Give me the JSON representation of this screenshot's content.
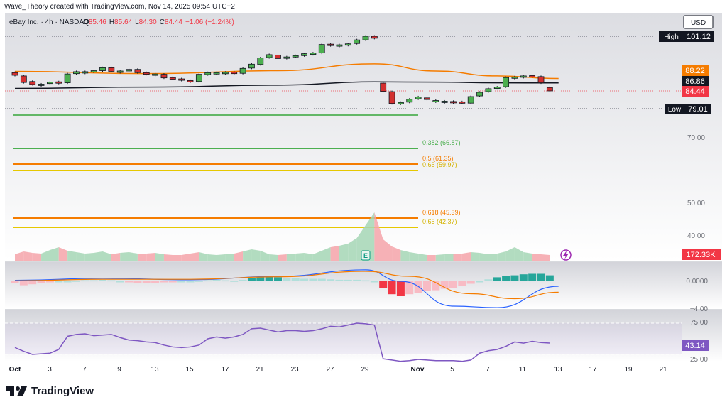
{
  "header": {
    "credit": "Wave_Theory created with TradingView.com, Nov 14, 2025 09:54 UTC+2"
  },
  "legend": {
    "symbol": "eBay Inc. · 4h · NASDAQ",
    "o_label": "O",
    "o_value": "85.46",
    "h_label": "H",
    "h_value": "85.64",
    "l_label": "L",
    "l_value": "84.30",
    "c_label": "C",
    "c_value": "84.44",
    "change": "−1.06 (−1.24%)"
  },
  "currency_button": "USD",
  "price_axis": {
    "high_label": "High",
    "high_value": "101.12",
    "low_label": "Low",
    "low_value": "79.01",
    "ema_orange_badge": "88.22",
    "ema_black_badge": "86.86",
    "last_price_badge": "84.44",
    "ticks": [
      "70.00",
      "50.00",
      "40.00"
    ],
    "volume_badge": "172.33K",
    "macd_ticks": [
      "0.0000",
      "−4.00"
    ],
    "rsi_ticks": [
      "75.00",
      "25.00"
    ],
    "rsi_badge": "43.14"
  },
  "fib_levels": [
    {
      "label": "0.382 (66.87)",
      "color": "#4caf50"
    },
    {
      "label": "0.5 (61.35)",
      "color": "#f57c00"
    },
    {
      "label": "0.65 (59.97)",
      "color": "#e6c800"
    },
    {
      "label": "0.618 (45.39)",
      "color": "#f57c00"
    },
    {
      "label": "0.65 (42.37)",
      "color": "#e6c800"
    }
  ],
  "time_axis": [
    "Oct",
    "3",
    "7",
    "9",
    "13",
    "15",
    "17",
    "21",
    "23",
    "27",
    "29",
    "Nov",
    "5",
    "7",
    "11",
    "13",
    "17",
    "19",
    "21"
  ],
  "earnings_marker": "E",
  "brand": "TradingView",
  "chart_data": {
    "type": "candlestick",
    "symbol": "eBay Inc.",
    "interval": "4h",
    "exchange": "NASDAQ",
    "currency": "USD",
    "last_ohlc": {
      "open": 85.46,
      "high": 85.64,
      "low": 84.3,
      "close": 84.44
    },
    "candles": [
      [
        90.0,
        89.2
      ],
      [
        89.0,
        87.0
      ],
      [
        87.3,
        86.4
      ],
      [
        86.5,
        86.5
      ],
      [
        86.7,
        87.1
      ],
      [
        87.2,
        86.9
      ],
      [
        86.9,
        89.6
      ],
      [
        89.7,
        90.3
      ],
      [
        90.2,
        90.3
      ],
      [
        90.2,
        90.6
      ],
      [
        90.6,
        91.5
      ],
      [
        91.5,
        90.4
      ],
      [
        90.5,
        90.5
      ],
      [
        90.5,
        91.0
      ],
      [
        91.0,
        90.0
      ],
      [
        90.0,
        89.5
      ],
      [
        89.4,
        89.6
      ],
      [
        89.5,
        88.4
      ],
      [
        88.5,
        88.0
      ],
      [
        88.1,
        87.7
      ],
      [
        87.6,
        87.2
      ],
      [
        87.3,
        89.5
      ],
      [
        89.4,
        90.0
      ],
      [
        90.0,
        90.0
      ],
      [
        90.0,
        90.1
      ],
      [
        90.2,
        89.7
      ],
      [
        89.8,
        91.3
      ],
      [
        91.4,
        92.6
      ],
      [
        92.5,
        94.5
      ],
      [
        94.6,
        95.5
      ],
      [
        95.4,
        94.3
      ],
      [
        94.5,
        94.8
      ],
      [
        94.8,
        95.2
      ],
      [
        95.2,
        95.8
      ],
      [
        95.9,
        96.0
      ],
      [
        96.0,
        98.6
      ],
      [
        98.7,
        98.5
      ],
      [
        98.4,
        98.5
      ],
      [
        98.6,
        98.8
      ],
      [
        98.9,
        100.0
      ],
      [
        100.0,
        101.1
      ],
      [
        101.1,
        100.5
      ],
      [
        86.8,
        84.3
      ],
      [
        84.2,
        80.6
      ],
      [
        80.6,
        80.9
      ],
      [
        81.0,
        81.9
      ],
      [
        82.0,
        82.6
      ],
      [
        82.3,
        81.8
      ],
      [
        81.5,
        81.5
      ],
      [
        81.3,
        81.3
      ],
      [
        81.2,
        81.0
      ],
      [
        81.1,
        80.8
      ],
      [
        80.7,
        82.7
      ],
      [
        82.9,
        84.0
      ],
      [
        84.2,
        85.1
      ],
      [
        85.2,
        85.6
      ],
      [
        85.7,
        88.5
      ],
      [
        88.4,
        88.7
      ],
      [
        88.7,
        89.0
      ],
      [
        89.1,
        88.9
      ],
      [
        88.8,
        86.9
      ],
      [
        85.46,
        84.44
      ]
    ],
    "ema_orange": [
      [
        0,
        90.4
      ],
      [
        15,
        89.7
      ],
      [
        30,
        90.6
      ],
      [
        41,
        92.7
      ],
      [
        48,
        90.5
      ],
      [
        55,
        89.0
      ],
      [
        62,
        88.22
      ]
    ],
    "ema_black": [
      [
        0,
        85.2
      ],
      [
        15,
        85.6
      ],
      [
        30,
        86.2
      ],
      [
        41,
        87.2
      ],
      [
        48,
        87.1
      ],
      [
        55,
        86.9
      ],
      [
        62,
        86.86
      ]
    ],
    "volume": [
      9,
      13,
      11,
      10,
      15,
      19,
      14,
      12,
      10,
      11,
      13,
      9,
      11,
      12,
      10,
      10,
      11,
      9,
      8,
      8,
      10,
      12,
      9,
      8,
      9,
      10,
      13,
      16,
      14,
      9,
      8,
      9,
      10,
      11,
      9,
      14,
      19,
      21,
      24,
      32,
      50,
      68,
      30,
      20,
      15,
      12,
      10,
      8,
      8,
      9,
      9,
      10,
      12,
      11,
      9,
      10,
      13,
      19,
      12,
      10,
      9,
      8
    ],
    "macd_hist": [
      -0.4,
      -0.8,
      -0.6,
      -0.3,
      -0.2,
      0.0,
      0.0,
      0.1,
      0.2,
      0.2,
      0.3,
      0.2,
      0.0,
      -0.2,
      -0.3,
      -0.4,
      -0.3,
      -0.2,
      -0.1,
      0.0,
      0.0,
      0.1,
      0.2,
      0.3,
      0.2,
      0.1,
      0.3,
      0.6,
      0.8,
      0.9,
      0.8,
      0.7,
      0.6,
      0.5,
      0.5,
      0.5,
      0.4,
      0.3,
      0.3,
      0.3,
      0.2,
      0.0,
      -1.3,
      -2.6,
      -3.0,
      -2.6,
      -2.3,
      -2.0,
      -1.8,
      -1.5,
      -1.3,
      -1.0,
      -0.5,
      0.0,
      0.4,
      0.8,
      1.0,
      1.2,
      1.4,
      1.5,
      1.5,
      1.2
    ],
    "macd_line": [
      [
        0,
        0.2
      ],
      [
        10,
        0.6
      ],
      [
        20,
        0.3
      ],
      [
        30,
        1.0
      ],
      [
        40,
        2.3
      ],
      [
        44,
        0.0
      ],
      [
        50,
        -5.0
      ],
      [
        55,
        -5.3
      ],
      [
        62,
        -1.0
      ]
    ],
    "signal_line": [
      [
        0,
        0.1
      ],
      [
        10,
        0.4
      ],
      [
        20,
        0.4
      ],
      [
        30,
        0.9
      ],
      [
        40,
        2.0
      ],
      [
        45,
        1.0
      ],
      [
        52,
        -2.5
      ],
      [
        57,
        -3.5
      ],
      [
        62,
        -2.2
      ]
    ],
    "rsi": [
      36,
      30,
      25,
      26,
      27,
      33,
      54,
      57,
      58,
      55,
      56,
      57,
      52,
      48,
      47,
      45,
      44,
      40,
      37,
      36,
      37,
      40,
      50,
      53,
      51,
      53,
      57,
      66,
      67,
      64,
      61,
      63,
      63,
      62,
      63,
      66,
      70,
      69,
      72,
      75,
      74,
      72,
      18,
      16,
      14,
      15,
      17,
      16,
      15,
      15,
      15,
      14,
      16,
      27,
      31,
      33,
      38,
      45,
      43,
      46,
      44,
      43.14
    ],
    "rsi_levels": [
      75,
      25
    ],
    "fibonacci": [
      {
        "ratio": 0.382,
        "value": 66.87
      },
      {
        "ratio": 0.5,
        "value": 61.35
      },
      {
        "ratio": 0.65,
        "value": 59.97
      },
      {
        "ratio": 0.618,
        "value": 45.39
      },
      {
        "ratio": 0.65,
        "value": 42.37
      }
    ],
    "extremes": {
      "high": 101.12,
      "low": 79.01
    },
    "volume_last": "172.33K",
    "rsi_last": 43.14,
    "earnings_event": "E"
  }
}
